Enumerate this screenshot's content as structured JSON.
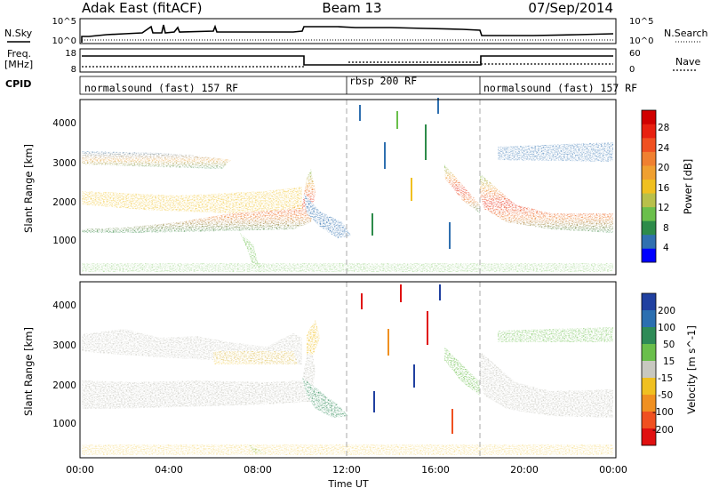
{
  "header": {
    "station": "Adak East (fitACF)",
    "beam": "Beam 13",
    "date": "07/Sep/2014"
  },
  "left_labels": {
    "nsky": "N.Sky",
    "freq_line1": "Freq.",
    "freq_line2": "[MHz]",
    "cpid": "CPID"
  },
  "right_labels": {
    "nsearch": "N.Search",
    "nave": "Nave"
  },
  "noise_panel": {
    "left_ticks": [
      "10^5",
      "10^0"
    ],
    "right_ticks": [
      "10^5",
      "10^0"
    ]
  },
  "freq_panel": {
    "left_ticks": [
      "18",
      "8"
    ],
    "right_ticks": [
      "60",
      "0"
    ]
  },
  "cpid": [
    {
      "label": "normalsound (fast) 157 RF",
      "start_h": 0,
      "end_h": 12
    },
    {
      "label": "rbsp 200 RF",
      "start_h": 12,
      "end_h": 18
    },
    {
      "label": "normalsound (fast) 157 RF",
      "start_h": 18,
      "end_h": 24
    }
  ],
  "power_panel": {
    "ylabel": "Slant Range [km]",
    "yticks": [
      "1000",
      "2000",
      "3000",
      "4000"
    ],
    "colorbar_label": "Power [dB]",
    "colorbar_ticks": [
      "4",
      "8",
      "12",
      "16",
      "20",
      "24",
      "28"
    ],
    "colorbar_colors": [
      "#0000ff",
      "#3070b0",
      "#2d8b4a",
      "#6abf4b",
      "#b8c04a",
      "#f0c020",
      "#f0a030",
      "#f08030",
      "#f05020",
      "#e82010",
      "#d00000"
    ]
  },
  "velocity_panel": {
    "ylabel": "Slant Range [km]",
    "yticks": [
      "1000",
      "2000",
      "3000",
      "4000"
    ],
    "colorbar_label": "Velocity [m s^-1]",
    "colorbar_ticks": [
      "200",
      "100",
      "50",
      "15",
      "-15",
      "-50",
      "-100",
      "-200"
    ],
    "colorbar_colors": [
      "#2040a0",
      "#2b6fb0",
      "#2e8b57",
      "#6abf4b",
      "#c8c8c0",
      "#f0c020",
      "#f09020",
      "#f05020",
      "#e01010"
    ]
  },
  "xaxis": {
    "ticks": [
      "00:00",
      "04:00",
      "08:00",
      "12:00",
      "16:00",
      "20:00",
      "00:00"
    ],
    "label": "Time UT"
  },
  "chart_data": {
    "type": "heatmap",
    "title": "Adak East (fitACF) Beam 13 07/Sep/2014",
    "xlabel": "Time UT",
    "ylabel": "Slant Range [km]",
    "xlim": [
      "00:00",
      "24:00"
    ],
    "ylim": [
      180,
      4600
    ],
    "grid": false,
    "approx_dominant_echo_band_km": [
      {
        "start": "00:00",
        "end": "10:00",
        "range_center": 1750,
        "range_width": 300
      },
      {
        "start": "18:00",
        "end": "24:00",
        "range_center": 1550,
        "range_width": 300
      },
      {
        "start": "10:00",
        "end": "11:00",
        "range_center": 2200,
        "range_width": 800
      },
      {
        "start": "16:00",
        "end": "18:00",
        "range_center": 2300,
        "range_width": 900
      }
    ],
    "approx_upper_echo_band_km": [
      {
        "start": "00:00",
        "end": "04:00",
        "range_center": 3150,
        "range_width": 400
      },
      {
        "start": "19:00",
        "end": "24:00",
        "range_center": 3250,
        "range_width": 300
      }
    ],
    "power_scale_db": [
      0,
      30
    ],
    "velocity_scale_ms": [
      -250,
      250
    ]
  }
}
